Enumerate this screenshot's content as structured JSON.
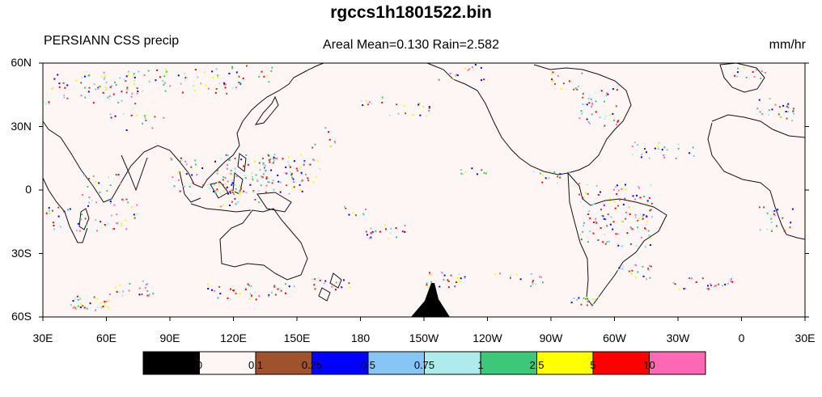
{
  "title": "rgccs1h1801522.bin",
  "subtitle_left": "PERSIANN CSS precip",
  "subtitle_center": "Areal Mean=0.130 Rain=2.582",
  "units": "mm/hr",
  "lat_labels": [
    "60N",
    "30N",
    "0",
    "30S",
    "60S"
  ],
  "lon_labels": [
    "30E",
    "60E",
    "90E",
    "120E",
    "150E",
    "180",
    "150W",
    "120W",
    "90W",
    "60W",
    "30W",
    "0",
    "30E"
  ],
  "colorbar": {
    "colors": [
      "#000000",
      "#fdf6f4",
      "#a0522d",
      "#0000ff",
      "#87c5f7",
      "#aeebeb",
      "#3cc878",
      "#ffff00",
      "#ff0000",
      "#ff69b4"
    ],
    "labels": [
      "0",
      "0.1",
      "0.25",
      "0.5",
      "0.75",
      "1",
      "2.5",
      "5",
      "10"
    ]
  }
}
